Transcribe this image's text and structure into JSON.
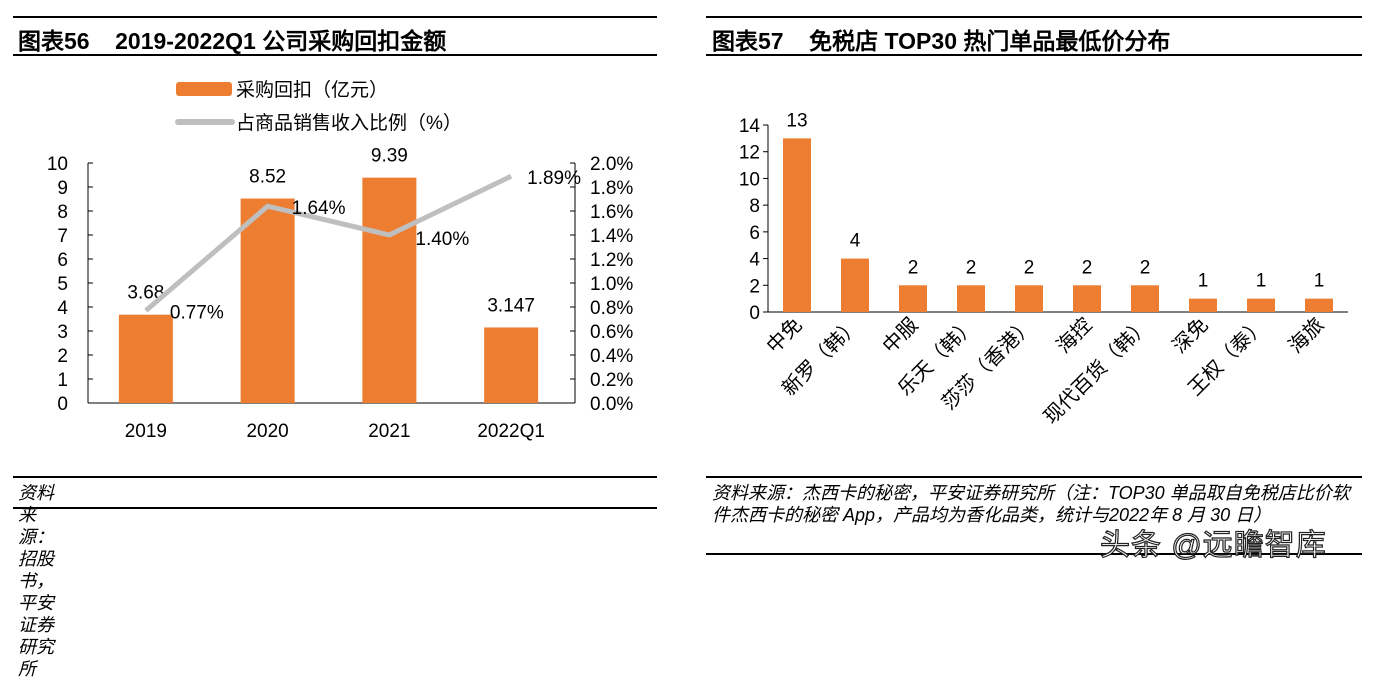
{
  "left": {
    "title": "图表56    2019-2022Q1 公司采购回扣金额",
    "source": "资料来源：招股书，平安证券研究所"
  },
  "right": {
    "title": "图表57    免税店 TOP30 热门单品最低价分布",
    "source": "资料来源：杰西卡的秘密，平安证券研究所（注：TOP30 单品取自免税店比价软件杰西卡的秘密 App，产品均为香化品类，统计与2022年 8 月 30 日）"
  },
  "watermark": "头条 @远瞻智库",
  "chart_data": [
    {
      "type": "bar+line",
      "categories": [
        "2019",
        "2020",
        "2021",
        "2022Q1"
      ],
      "series": [
        {
          "name": "采购回扣（亿元）",
          "type": "bar",
          "axis": "left",
          "values": [
            3.68,
            8.52,
            9.39,
            3.147
          ],
          "labels": [
            "3.68",
            "8.52",
            "9.39",
            "3.147"
          ],
          "color": "#ED7D31"
        },
        {
          "name": "占商品销售收入比例（%）",
          "type": "line",
          "axis": "right",
          "values": [
            0.77,
            1.64,
            1.4,
            1.89
          ],
          "labels": [
            "0.77%",
            "1.64%",
            "1.40%",
            "1.89%"
          ],
          "color": "#BFBFBF"
        }
      ],
      "y_left": {
        "range": [
          0,
          10
        ],
        "ticks": [
          "0",
          "1",
          "2",
          "3",
          "4",
          "5",
          "6",
          "7",
          "8",
          "9",
          "10"
        ]
      },
      "y_right": {
        "range": [
          0,
          2.0
        ],
        "ticks": [
          "0.0%",
          "0.2%",
          "0.4%",
          "0.6%",
          "0.8%",
          "1.0%",
          "1.2%",
          "1.4%",
          "1.6%",
          "1.8%",
          "2.0%"
        ]
      },
      "grid": false,
      "legend": "top"
    },
    {
      "type": "bar",
      "categories": [
        "中免",
        "新罗（韩）",
        "中服",
        "乐天（韩）",
        "莎莎（香港）",
        "海控",
        "现代百货（韩）",
        "深免",
        "王权（泰）",
        "海旅"
      ],
      "values": [
        13,
        4,
        2,
        2,
        2,
        2,
        2,
        1,
        1,
        1
      ],
      "labels": [
        "13",
        "4",
        "2",
        "2",
        "2",
        "2",
        "2",
        "1",
        "1",
        "1"
      ],
      "color": "#ED7D31",
      "y": {
        "range": [
          0,
          14
        ],
        "ticks": [
          "0",
          "2",
          "4",
          "6",
          "8",
          "10",
          "12",
          "14"
        ]
      },
      "grid": false
    }
  ]
}
